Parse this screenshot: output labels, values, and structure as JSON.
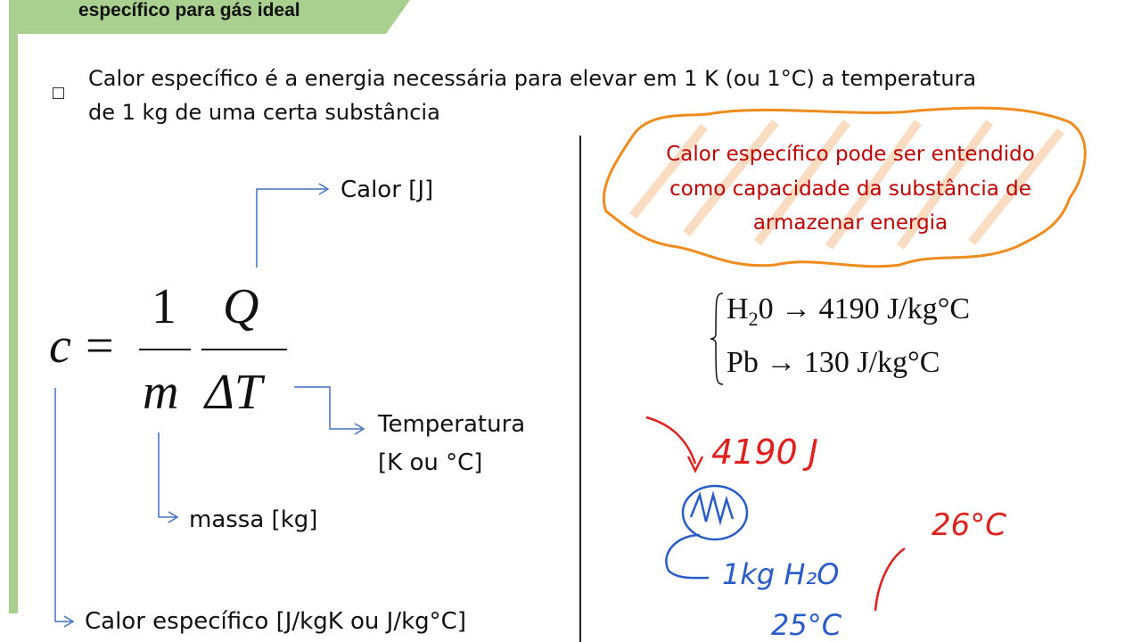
{
  "slide": {
    "title": "específico para gás ideal",
    "bullet_line1": "Calor específico é a energia necessária para elevar em 1 K (ou 1°C) a temperatura",
    "bullet_line2": "de 1 kg de uma certa substância",
    "formula": {
      "lhs": "c",
      "eq": "=",
      "num1": "1",
      "den1": "m",
      "num2": "Q",
      "den2": "ΔT"
    },
    "labels": {
      "calor": "Calor [J]",
      "temperatura_1": "Temperatura",
      "temperatura_2": "[K ou °C]",
      "massa": "massa [kg]",
      "calor_especifico": "Calor específico [J/kgK ou J/kg°C]"
    },
    "callout": {
      "line1": "Calor específico pode ser entendido",
      "line2": "como capacidade da substância de",
      "line3": "armazenar energia"
    },
    "examples": [
      {
        "substance": "H",
        "sub": "2",
        "rest": "0 → 4190 J/kg°C"
      },
      {
        "substance": "Pb",
        "sub": "",
        "rest": " → 130 J/kg°C"
      }
    ],
    "handwriting": {
      "energy": "4190 J",
      "mass": "1kg H₂O",
      "t1": "25°C",
      "t2": "26°C"
    }
  },
  "colors": {
    "accent_green": "#a9d08e",
    "arrow_blue": "#4472c4",
    "callout_red": "#c00000",
    "callout_orange": "#f08c1e",
    "ink_red": "#e0201c",
    "ink_blue": "#2a5cc8"
  }
}
